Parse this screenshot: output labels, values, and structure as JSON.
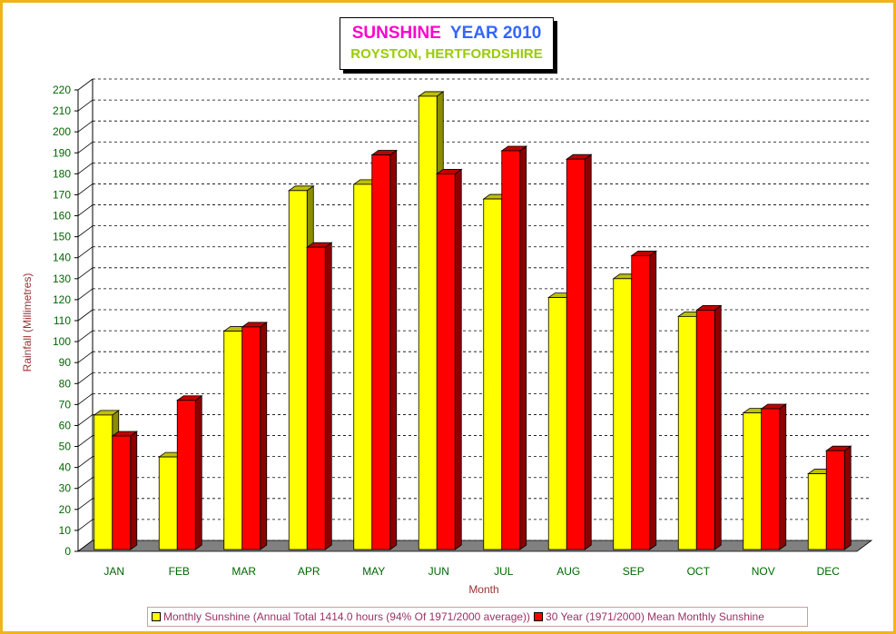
{
  "title": {
    "part1": "SUNSHINE",
    "part2": "YEAR 2010",
    "subtitle": "ROYSTON, HERTFORDSHIRE"
  },
  "colors": {
    "series1": "#ffff00",
    "series2": "#ff0000",
    "floor": "#808080",
    "tick_text": "#006600",
    "axis_label": "#993333",
    "border": "#f2b21a"
  },
  "chart_data": {
    "type": "bar",
    "title": "SUNSHINE YEAR 2010",
    "subtitle": "ROYSTON, HERTFORDSHIRE",
    "xlabel": "Month",
    "ylabel": "Rainfall  (Millimetres)",
    "ylim": [
      0,
      220
    ],
    "ytick_step": 10,
    "grid": true,
    "legend_position": "bottom",
    "categories": [
      "JAN",
      "FEB",
      "MAR",
      "APR",
      "MAY",
      "JUN",
      "JUL",
      "AUG",
      "SEP",
      "OCT",
      "NOV",
      "DEC"
    ],
    "series": [
      {
        "name": "Monthly Sunshine (Annual Total 1414.0 hours (94% Of 1971/2000 average))",
        "values": [
          65,
          45,
          105,
          172,
          175,
          217,
          168,
          121,
          130,
          112,
          66,
          37
        ]
      },
      {
        "name": "30 Year (1971/2000) Mean Monthly Sunshine",
        "values": [
          55,
          72,
          107,
          145,
          189,
          180,
          191,
          187,
          141,
          115,
          68,
          48
        ]
      }
    ]
  }
}
